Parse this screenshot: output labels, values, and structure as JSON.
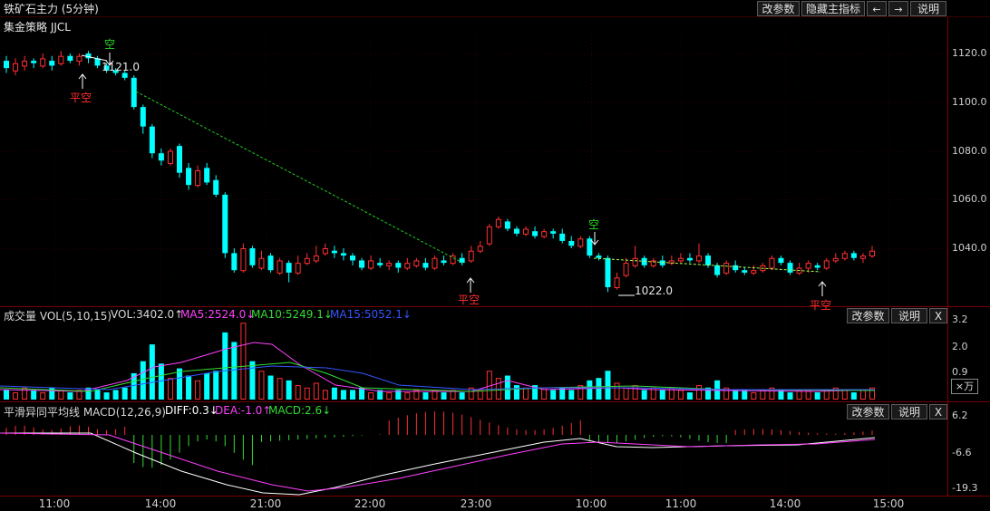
{
  "header": {
    "title": "铁矿石主力 (5分钟)",
    "strategy": "集金策略 JJCL",
    "buttons": [
      "改参数",
      "隐藏主指标",
      "←",
      "→",
      "说明"
    ]
  },
  "price_panel": {
    "y_ticks": [
      "1120.0",
      "1100.0",
      "1080.0",
      "1060.0",
      "1040.0"
    ],
    "signals": [
      {
        "text": "平空",
        "arrow": "up",
        "color": "#ff3030"
      },
      {
        "text": "空",
        "arrow": "down",
        "color": "#22dd22"
      },
      {
        "text": "平空",
        "arrow": "up",
        "color": "#ff3030"
      },
      {
        "text": "空",
        "arrow": "down",
        "color": "#22dd22"
      },
      {
        "text": "平空",
        "arrow": "up",
        "color": "#ff3030"
      }
    ],
    "high_label": "1121.0",
    "low_label": "1022.0"
  },
  "volume_panel": {
    "name": "成交量 VOL(5,10,15)",
    "vol": "VOL:3402.0↑",
    "ma5": "MA5:2524.0↓",
    "ma10": "MA10:5249.1↓",
    "ma15": "MA15:5052.1↓",
    "buttons": [
      "改参数",
      "说明",
      "X"
    ],
    "y_ticks": [
      "3.2",
      "2.0",
      "0.9"
    ],
    "unit": "×万",
    "colors": {
      "vol": "#d8d8d8",
      "ma5": "#ff40ff",
      "ma10": "#33dd33",
      "ma15": "#3355ff"
    }
  },
  "macd_panel": {
    "name": "平滑异同平均线 MACD(12,26,9)",
    "diff": "DIFF:0.3↓",
    "dea": "DEA:-1.0↑",
    "macd": "MACD:2.6↓",
    "buttons": [
      "改参数",
      "说明",
      "X"
    ],
    "y_ticks": [
      "6.2",
      "-6.6",
      "-19.3"
    ],
    "colors": {
      "diff": "#ffffff",
      "dea": "#ff40ff",
      "macd": "#33dd33"
    }
  },
  "time_axis": [
    "11:00",
    "14:00",
    "21:00",
    "22:00",
    "23:00",
    "10:00",
    "11:00",
    "14:00",
    "15:00"
  ],
  "colors": {
    "up": "#ff3030",
    "down": "#00ffff",
    "grid": "#7a0000",
    "trend_line": "#22cc22"
  }
}
